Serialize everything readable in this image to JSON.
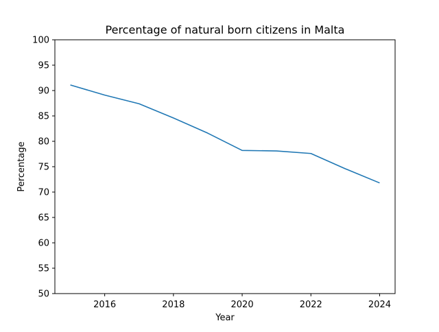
{
  "chart_data": {
    "type": "line",
    "title": "Percentage of natural born citizens in Malta",
    "xlabel": "Year",
    "ylabel": "Percentage",
    "x": [
      2015,
      2016,
      2017,
      2018,
      2019,
      2020,
      2021,
      2022,
      2023,
      2024
    ],
    "series": [
      {
        "values": [
          91.1,
          89.1,
          87.4,
          84.6,
          81.6,
          78.2,
          78.1,
          77.6,
          74.6,
          71.8
        ],
        "color": "#1f77b4"
      }
    ],
    "xlim": [
      2014.55,
      2024.45
    ],
    "ylim": [
      50,
      100
    ],
    "xticks": [
      2016,
      2018,
      2020,
      2022,
      2024
    ],
    "yticks": [
      50,
      55,
      60,
      65,
      70,
      75,
      80,
      85,
      90,
      95,
      100
    ],
    "grid": false,
    "legend": "none"
  }
}
